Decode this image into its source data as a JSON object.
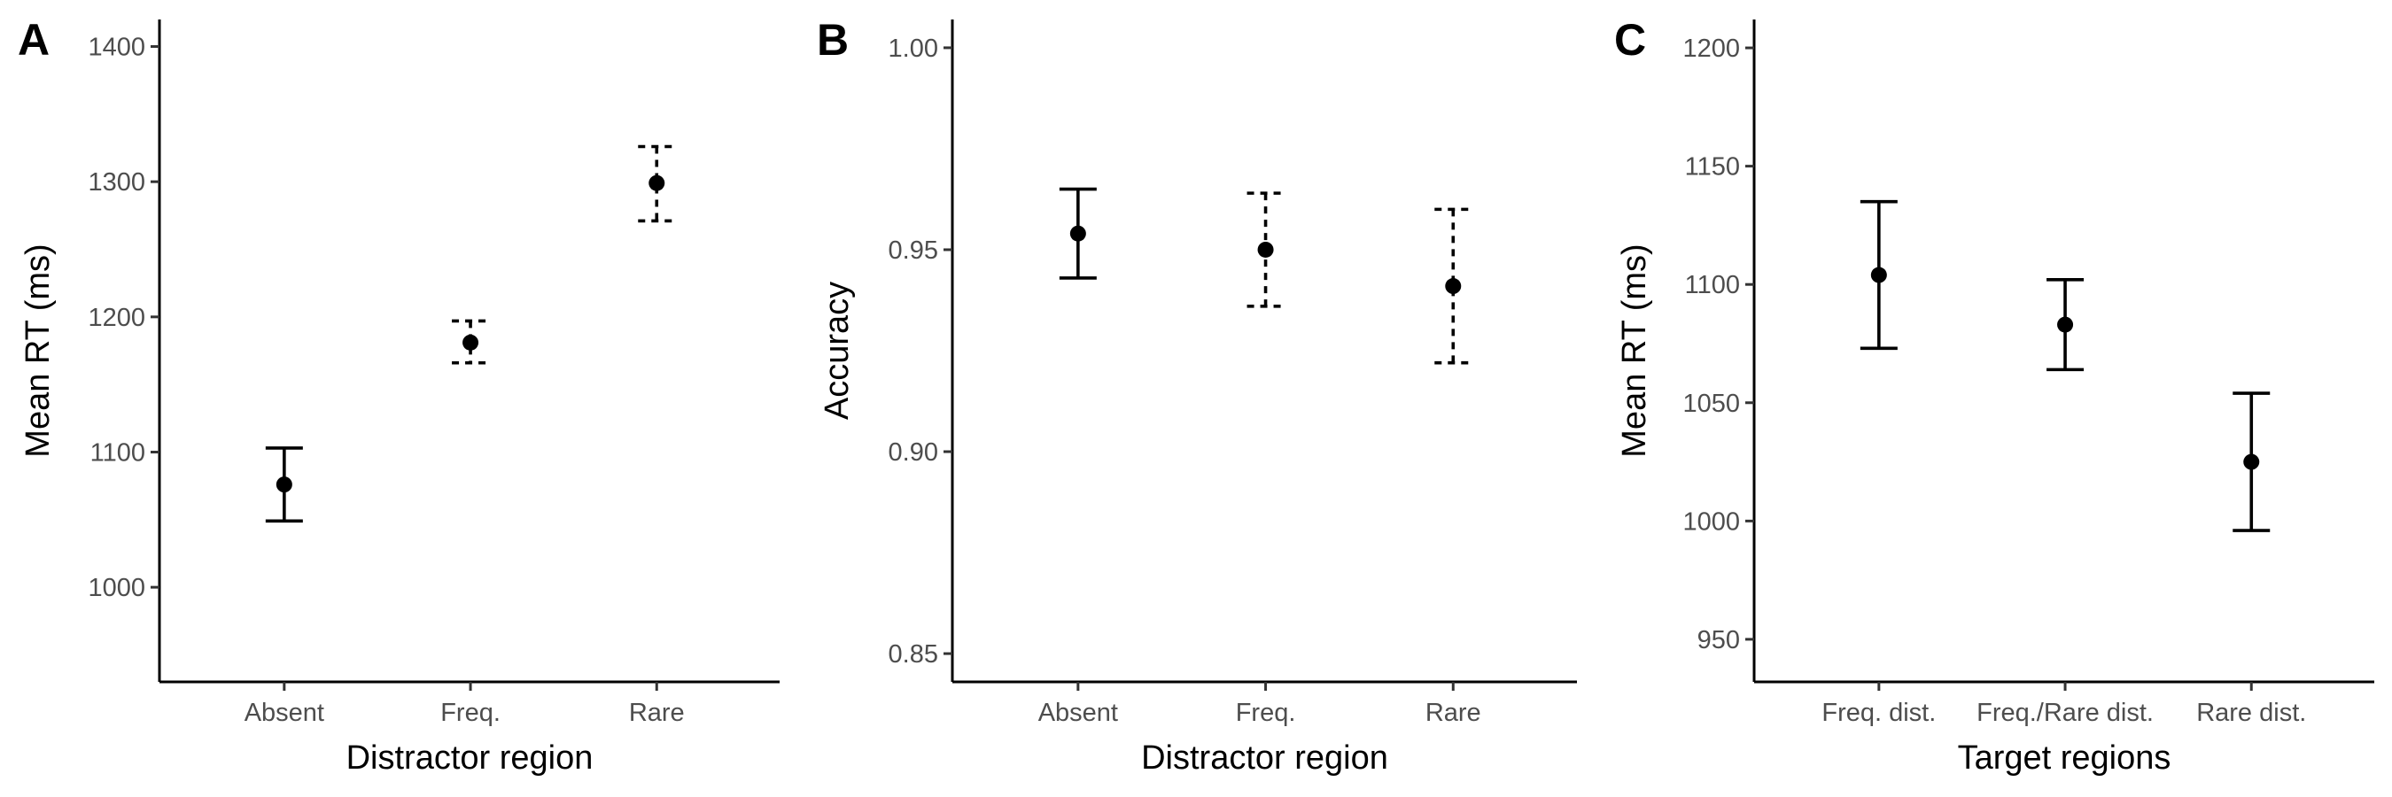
{
  "chart_data": [
    {
      "panel": "A",
      "type": "scatter",
      "subtype": "point-with-errorbars",
      "xlabel": "Distractor region",
      "ylabel": "Mean RT (ms)",
      "categories": [
        "Absent",
        "Freq.",
        "Rare"
      ],
      "yticks": [
        "1000",
        "1100",
        "1200",
        "1300",
        "1400"
      ],
      "ylim": [
        930,
        1420
      ],
      "points": [
        {
          "x": "Absent",
          "y": 1076,
          "lower": 1049,
          "upper": 1103,
          "line": "solid"
        },
        {
          "x": "Freq.",
          "y": 1181,
          "lower": 1166,
          "upper": 1197,
          "line": "dashed"
        },
        {
          "x": "Rare",
          "y": 1299,
          "lower": 1271,
          "upper": 1326,
          "line": "dashed"
        }
      ],
      "grid": false
    },
    {
      "panel": "B",
      "type": "scatter",
      "subtype": "point-with-errorbars",
      "xlabel": "Distractor region",
      "ylabel": "Accuracy",
      "categories": [
        "Absent",
        "Freq.",
        "Rare"
      ],
      "yticks": [
        "0.85",
        "0.90",
        "0.95",
        "1.00"
      ],
      "ylim": [
        0.843,
        1.007
      ],
      "points": [
        {
          "x": "Absent",
          "y": 0.954,
          "lower": 0.943,
          "upper": 0.965,
          "line": "solid"
        },
        {
          "x": "Freq.",
          "y": 0.95,
          "lower": 0.936,
          "upper": 0.964,
          "line": "dashed"
        },
        {
          "x": "Rare",
          "y": 0.941,
          "lower": 0.922,
          "upper": 0.96,
          "line": "dashed"
        }
      ],
      "grid": false
    },
    {
      "panel": "C",
      "type": "scatter",
      "subtype": "point-with-errorbars",
      "xlabel": "Target regions",
      "ylabel": "Mean RT (ms)",
      "categories": [
        "Freq. dist.",
        "Freq./Rare dist.",
        "Rare dist."
      ],
      "yticks": [
        "950",
        "1000",
        "1050",
        "1100",
        "1150",
        "1200"
      ],
      "ylim": [
        932,
        1212
      ],
      "points": [
        {
          "x": "Freq. dist.",
          "y": 1104,
          "lower": 1073,
          "upper": 1135,
          "line": "solid"
        },
        {
          "x": "Freq./Rare dist.",
          "y": 1083,
          "lower": 1064,
          "upper": 1102,
          "line": "solid"
        },
        {
          "x": "Rare dist.",
          "y": 1025,
          "lower": 996,
          "upper": 1054,
          "line": "solid"
        }
      ],
      "grid": false
    }
  ]
}
